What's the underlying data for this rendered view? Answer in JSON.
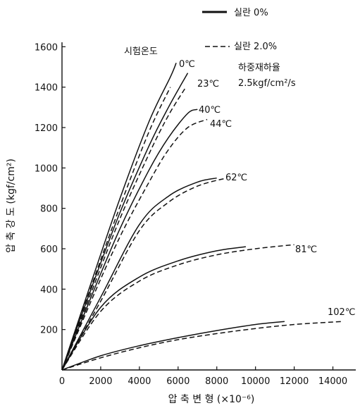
{
  "chart_data": {
    "type": "line",
    "xlabel": "압 축 변 형 (×10⁻⁶)",
    "ylabel": "압 축 강 도 (kgf/cm²)",
    "xlim": [
      0,
      15000
    ],
    "ylim": [
      0,
      1650
    ],
    "x_ticks": [
      "0",
      "2000",
      "4000",
      "6000",
      "8000",
      "10000",
      "12000",
      "14000"
    ],
    "y_ticks": [
      "200",
      "400",
      "600",
      "800",
      "1000",
      "1200",
      "1400",
      "1600"
    ],
    "legend": [
      {
        "label": "실란 0%",
        "style": "solid"
      },
      {
        "label": "실란 2.0%",
        "style": "dashed"
      }
    ],
    "annotation_title": "시험온도",
    "annotation_notes": [
      "하중재하율",
      "2.5kgf/cm²/s"
    ],
    "grid": false,
    "temperatures": [
      {
        "label": "0℃",
        "solid": {
          "x": [
            0,
            1500,
            3000,
            4500,
            5600,
            5900
          ],
          "y": [
            0,
            430,
            850,
            1230,
            1450,
            1520
          ]
        },
        "dashed": {
          "x": [
            0,
            1500,
            3000,
            4500,
            5600
          ],
          "y": [
            0,
            410,
            810,
            1180,
            1400
          ]
        }
      },
      {
        "label": "23℃",
        "solid": {
          "x": [
            0,
            1500,
            3000,
            4500,
            5500,
            6500
          ],
          "y": [
            0,
            400,
            780,
            1110,
            1300,
            1470
          ]
        },
        "dashed": {
          "x": [
            0,
            1500,
            3000,
            4500,
            5500,
            6400
          ],
          "y": [
            0,
            380,
            750,
            1070,
            1260,
            1400
          ]
        }
      },
      {
        "label": "40℃",
        "solid": {
          "x": [
            0,
            1500,
            3000,
            4500,
            5500,
            6500,
            7000
          ],
          "y": [
            0,
            360,
            700,
            990,
            1150,
            1270,
            1290
          ]
        },
        "dashed": {
          "x": [
            0,
            1500,
            3000,
            4500,
            5500,
            6500,
            7500
          ],
          "y": [
            0,
            340,
            660,
            930,
            1090,
            1200,
            1240
          ]
        }
      },
      {
        "label": "44℃"
      },
      {
        "label": "62℃",
        "solid": {
          "x": [
            0,
            2000,
            4000,
            5500,
            7000,
            8000
          ],
          "y": [
            0,
            360,
            720,
            860,
            930,
            950
          ]
        },
        "dashed": {
          "x": [
            0,
            2000,
            4000,
            5500,
            7000,
            8500
          ],
          "y": [
            0,
            340,
            690,
            830,
            910,
            950
          ]
        }
      },
      {
        "label": "81℃",
        "solid": {
          "x": [
            0,
            2000,
            4000,
            6000,
            8000,
            9500
          ],
          "y": [
            0,
            310,
            460,
            540,
            590,
            610
          ]
        },
        "dashed": {
          "x": [
            0,
            2000,
            4000,
            6000,
            8000,
            10000,
            12000
          ],
          "y": [
            0,
            290,
            440,
            520,
            570,
            600,
            620
          ]
        }
      },
      {
        "label": "102℃",
        "solid": {
          "x": [
            0,
            2000,
            4000,
            6000,
            8000,
            10000,
            11500
          ],
          "y": [
            0,
            70,
            120,
            160,
            195,
            225,
            240
          ]
        },
        "dashed": {
          "x": [
            0,
            2000,
            4000,
            6000,
            8000,
            10000,
            12000,
            14500
          ],
          "y": [
            0,
            60,
            110,
            150,
            180,
            205,
            225,
            240
          ]
        }
      }
    ]
  }
}
